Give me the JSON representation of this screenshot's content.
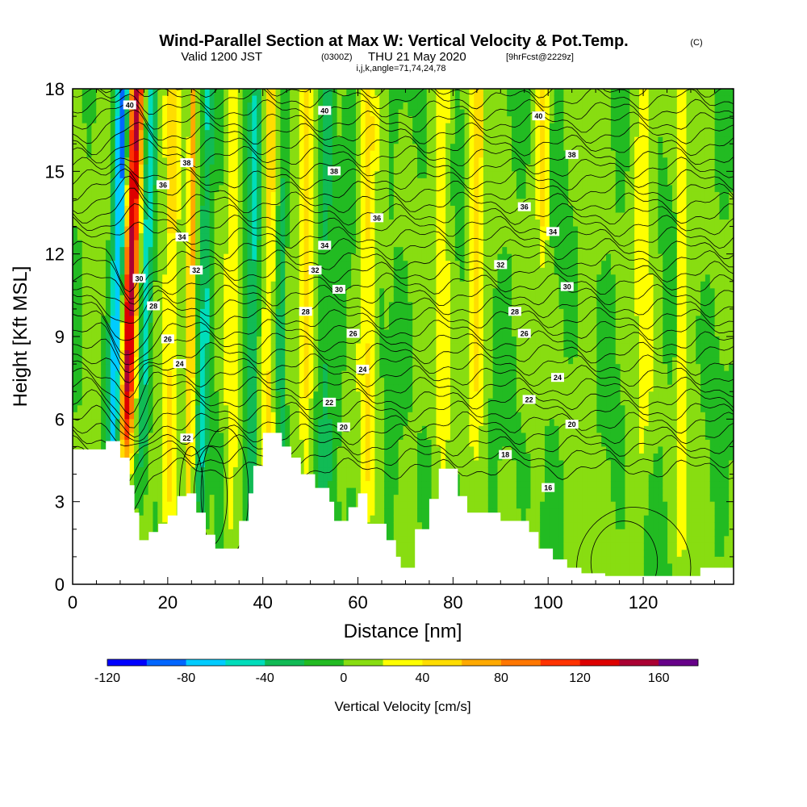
{
  "header": {
    "title": "Wind-Parallel Section at Max W: Vertical Velocity & Pot.Temp.",
    "copyright": "(C)",
    "valid_prefix": "Valid 1200 JST",
    "utc_time": "(0300Z)",
    "valid_date": "THU 21 May 2020",
    "forecast": "[9hrFcst@2229z]",
    "indices": "i,j,k,angle=71,74,24,78"
  },
  "chart_data": {
    "type": "heatmap",
    "xlabel": "Distance [nm]",
    "ylabel": "Height [Kft MSL]",
    "xlim": [
      0,
      139
    ],
    "ylim": [
      0,
      18
    ],
    "x_ticks": [
      0,
      20,
      40,
      60,
      80,
      100,
      120
    ],
    "y_ticks": [
      0,
      3,
      6,
      9,
      12,
      15,
      18
    ],
    "colorbar": {
      "title": "Vertical Velocity [cm/s]",
      "bins": [
        -120,
        -100,
        -80,
        -60,
        -40,
        -20,
        0,
        20,
        40,
        60,
        80,
        100,
        120,
        140,
        160,
        180
      ],
      "tick_labels": [
        "-120",
        "-80",
        "-40",
        "0",
        "40",
        "80",
        "120",
        "160"
      ],
      "tick_values": [
        -120,
        -80,
        -40,
        0,
        40,
        80,
        120,
        160
      ],
      "colors": [
        "#0000ff",
        "#0066ff",
        "#00ccff",
        "#00ddbb",
        "#11bb55",
        "#22bb22",
        "#88dd11",
        "#ffff00",
        "#ffdd00",
        "#ffaa00",
        "#ff7700",
        "#ff3300",
        "#dd0000",
        "#aa0033",
        "#660088"
      ]
    },
    "theta_labels": [
      {
        "x": 12,
        "y": 17.4,
        "text": "40"
      },
      {
        "x": 53,
        "y": 17.2,
        "text": "40"
      },
      {
        "x": 98,
        "y": 17.0,
        "text": "40"
      },
      {
        "x": 24,
        "y": 15.3,
        "text": "38"
      },
      {
        "x": 55,
        "y": 15.0,
        "text": "38"
      },
      {
        "x": 105,
        "y": 15.6,
        "text": "38"
      },
      {
        "x": 19,
        "y": 14.5,
        "text": "36"
      },
      {
        "x": 64,
        "y": 13.3,
        "text": "36"
      },
      {
        "x": 95,
        "y": 13.7,
        "text": "36"
      },
      {
        "x": 23,
        "y": 12.6,
        "text": "34"
      },
      {
        "x": 53,
        "y": 12.3,
        "text": "34"
      },
      {
        "x": 101,
        "y": 12.8,
        "text": "34"
      },
      {
        "x": 51,
        "y": 11.4,
        "text": "32"
      },
      {
        "x": 90,
        "y": 11.6,
        "text": "32"
      },
      {
        "x": 26,
        "y": 11.4,
        "text": "32"
      },
      {
        "x": 14,
        "y": 11.1,
        "text": "30"
      },
      {
        "x": 56,
        "y": 10.7,
        "text": "30"
      },
      {
        "x": 104,
        "y": 10.8,
        "text": "30"
      },
      {
        "x": 17,
        "y": 10.1,
        "text": "28"
      },
      {
        "x": 49,
        "y": 9.9,
        "text": "28"
      },
      {
        "x": 93,
        "y": 9.9,
        "text": "28"
      },
      {
        "x": 20,
        "y": 8.9,
        "text": "26"
      },
      {
        "x": 59,
        "y": 9.1,
        "text": "26"
      },
      {
        "x": 95,
        "y": 9.1,
        "text": "26"
      },
      {
        "x": 22.5,
        "y": 8.0,
        "text": "24"
      },
      {
        "x": 61,
        "y": 7.8,
        "text": "24"
      },
      {
        "x": 102,
        "y": 7.5,
        "text": "24"
      },
      {
        "x": 54,
        "y": 6.6,
        "text": "22"
      },
      {
        "x": 96,
        "y": 6.7,
        "text": "22"
      },
      {
        "x": 24,
        "y": 5.3,
        "text": "22"
      },
      {
        "x": 57,
        "y": 5.7,
        "text": "20"
      },
      {
        "x": 105,
        "y": 5.8,
        "text": "20"
      },
      {
        "x": 91,
        "y": 4.7,
        "text": "18"
      },
      {
        "x": 100,
        "y": 3.5,
        "text": "16"
      }
    ]
  },
  "colors": {
    "terrain": "#ffffff",
    "contour": "#000000"
  }
}
